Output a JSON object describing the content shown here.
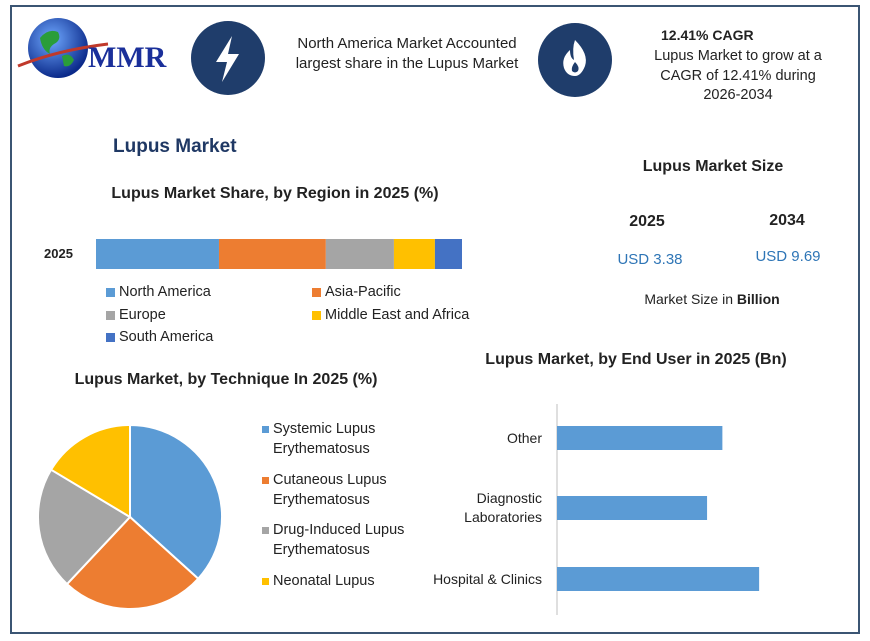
{
  "header": {
    "logo_text": "MMR",
    "highlight": "North America Market Accounted largest share in the Lupus Market",
    "cagr_title": "12.41% CAGR",
    "cagr_text": "Lupus Market to grow at a CAGR of 12.41% during 2026-2034"
  },
  "section_title": "Lupus Market",
  "market_size": {
    "title": "Lupus Market Size",
    "years": [
      "2025",
      "2034"
    ],
    "values": [
      "USD 3.38",
      "USD 9.69"
    ],
    "note": "Market Size in",
    "note_unit": "Billion"
  },
  "chart_data": [
    {
      "type": "stacked-bar",
      "title": "Lupus Market Share, by Region in 2025 (%)",
      "categories": [
        "2025"
      ],
      "xlim": [
        0,
        100
      ],
      "series": [
        {
          "name": "North America",
          "color": "#5b9bd5",
          "values": [
            33.6
          ]
        },
        {
          "name": "Asia-Pacific",
          "color": "#ed7d31",
          "values": [
            29.2
          ]
        },
        {
          "name": "Europe",
          "color": "#a5a5a5",
          "values": [
            18.6
          ]
        },
        {
          "name": "Middle East and Africa",
          "color": "#ffc000",
          "values": [
            11.2
          ]
        },
        {
          "name": "South America",
          "color": "#4472c4",
          "values": [
            7.4
          ]
        }
      ]
    },
    {
      "type": "pie",
      "title": "Lupus Market, by Technique In 2025 (%)",
      "categories": [
        "Systemic Lupus Erythematosus",
        "Cutaneous Lupus Erythematosus",
        "Drug-Induced Lupus Erythematosus",
        "Neonatal Lupus"
      ],
      "values": [
        36.7,
        25.3,
        21.6,
        16.4
      ],
      "colors": [
        "#5b9bd5",
        "#ed7d31",
        "#a5a5a5",
        "#ffc000"
      ]
    },
    {
      "type": "hbar",
      "title": "Lupus Market, by End User in 2025 (Bn)",
      "categories": [
        "Other",
        "Diagnostic Laboratories",
        "Hospital & Clinics"
      ],
      "values": [
        1.08,
        0.98,
        1.32
      ],
      "color": "#5b9bd5",
      "xlim": [
        0,
        1.6
      ]
    }
  ]
}
